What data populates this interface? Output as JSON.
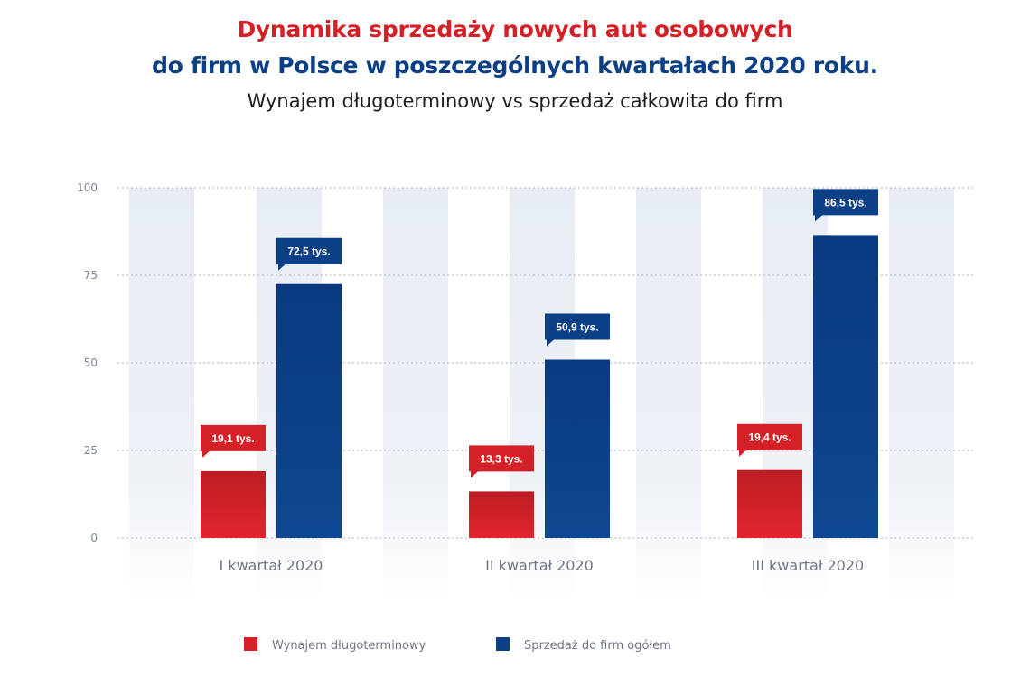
{
  "header": {
    "title_line1": "Dynamika sprzedaży nowych aut osobowych",
    "title_line2": "do firm w Polsce w poszczególnych kwartałach 2020 roku.",
    "subtitle": "Wynajem długoterminowy vs sprzedaż całkowita do firm"
  },
  "colors": {
    "series_red": "#d42027",
    "series_blue": "#0b3f86",
    "title_red": "#d52027",
    "title_blue": "#0b3f86",
    "stripe": "#e9eef5"
  },
  "chart_data": {
    "type": "bar",
    "title": "Dynamika sprzedaży nowych aut osobowych do firm w Polsce w poszczególnych kwartałach 2020 roku.",
    "subtitle": "Wynajem długoterminowy vs sprzedaż całkowita do firm",
    "categories": [
      "I kwartał 2020",
      "II kwartał 2020",
      "III kwartał 2020"
    ],
    "series": [
      {
        "name": "Wynajem długoterminowy",
        "values": [
          19.1,
          13.3,
          19.4
        ],
        "labels": [
          "19,1 tys.",
          "13,3 tys.",
          "19,4 tys."
        ],
        "color": "#d42027"
      },
      {
        "name": "Sprzedaż do firm ogółem",
        "values": [
          72.5,
          50.9,
          86.5
        ],
        "labels": [
          "72,5 tys.",
          "50,9 tys.",
          "86,5 tys."
        ],
        "color": "#0b3f86"
      }
    ],
    "yticks": [
      0,
      25,
      50,
      75,
      100
    ],
    "ylim": [
      0,
      100
    ],
    "xlabel": "",
    "ylabel": "",
    "grid": true,
    "legend_position": "bottom"
  }
}
